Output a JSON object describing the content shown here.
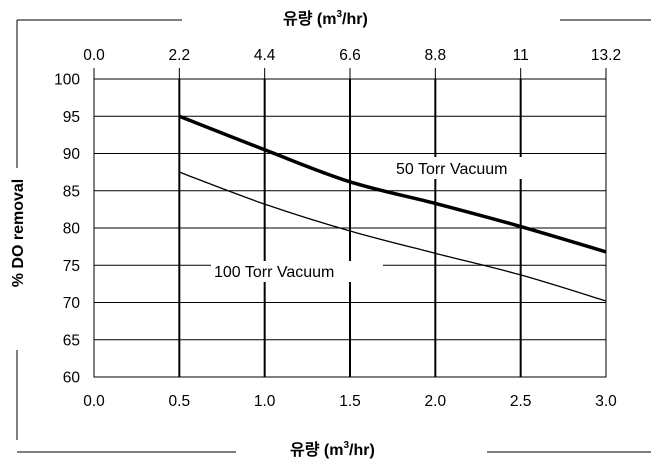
{
  "chart_data": {
    "type": "line",
    "ylabel": "% DO removal",
    "xlabel": {
      "prefix": "유량 (m",
      "sup": "3",
      "suffix": "/hr)"
    },
    "top_xlabel": {
      "prefix": "유량 (m",
      "sup": "3",
      "suffix": "/hr)"
    },
    "xlim": [
      0,
      3.0
    ],
    "ylim": [
      60,
      100
    ],
    "x_ticks": [
      "0.0",
      "0.5",
      "1.0",
      "1.5",
      "2.0",
      "2.5",
      "3.0"
    ],
    "top_ticks": [
      "0.0",
      "2.2",
      "4.4",
      "6.6",
      "8.8",
      "11",
      "13.2"
    ],
    "y_ticks": [
      "60",
      "65",
      "70",
      "75",
      "80",
      "85",
      "90",
      "95",
      "100"
    ],
    "grid": true,
    "series": [
      {
        "name": "50 Torr Vacuum",
        "x": [
          0.5,
          1.0,
          1.5,
          2.0,
          2.5,
          3.0
        ],
        "values": [
          95.0,
          90.5,
          86.2,
          83.3,
          80.2,
          76.8
        ]
      },
      {
        "name": "100 Torr Vacuum",
        "x": [
          0.5,
          1.0,
          1.5,
          2.0,
          2.5,
          3.0
        ],
        "values": [
          87.5,
          83.2,
          79.6,
          76.6,
          73.7,
          70.2
        ]
      }
    ]
  }
}
